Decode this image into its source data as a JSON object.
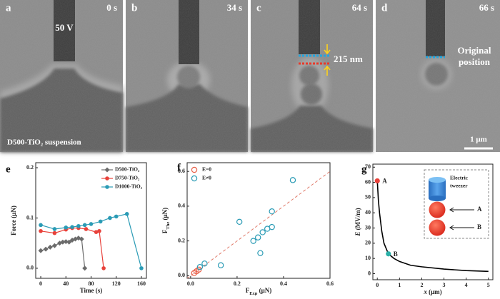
{
  "panels": [
    {
      "label": "a",
      "time": "0 s",
      "annotations": [
        "50 V",
        "D500-TiO₂ suspension"
      ]
    },
    {
      "label": "b",
      "time": "34 s"
    },
    {
      "label": "c",
      "time": "64 s",
      "annotations": [
        "215 nm"
      ]
    },
    {
      "label": "d",
      "time": "66 s",
      "annotations": [
        "Original",
        "position"
      ],
      "scale_bar": "1 μm"
    }
  ],
  "chart_data": [
    {
      "type": "line",
      "label": "e",
      "xlabel": [
        "Time (s)"
      ],
      "ylabel": [
        "Force (μN)"
      ],
      "xlim": [
        -8,
        168
      ],
      "xticks": [
        0,
        40,
        80,
        120,
        160
      ],
      "ylim": [
        -0.02,
        0.21
      ],
      "yticks": [
        {
          "value": 0,
          "label": "0.0"
        },
        0.1,
        0.2
      ],
      "legend": "upper right",
      "series": [
        {
          "name": "D500-TiO₂",
          "color": "#6b6b6b",
          "marker": "diamond",
          "x": [
            0,
            8,
            15,
            22,
            30,
            35,
            40,
            45,
            50,
            55,
            60,
            65,
            70
          ],
          "values": [
            0.035,
            0.038,
            0.042,
            0.045,
            0.05,
            0.052,
            0.053,
            0.052,
            0.056,
            0.058,
            0.06,
            0.058,
            0.0
          ]
        },
        {
          "name": "D750-TiO₂",
          "color": "#e8413a",
          "marker": "circle",
          "x": [
            0,
            22,
            40,
            50,
            60,
            72,
            88,
            93,
            100
          ],
          "values": [
            0.074,
            0.07,
            0.077,
            0.08,
            0.08,
            0.078,
            0.072,
            0.074,
            0.0
          ]
        },
        {
          "name": "D1000-TiO₂",
          "color": "#2a9bb5",
          "marker": "circle",
          "x": [
            0,
            22,
            40,
            50,
            60,
            70,
            80,
            95,
            110,
            120,
            137,
            160
          ],
          "values": [
            0.086,
            0.078,
            0.081,
            0.082,
            0.084,
            0.086,
            0.088,
            0.093,
            0.1,
            0.103,
            0.108,
            0.0
          ]
        }
      ]
    },
    {
      "type": "scatter",
      "label": "f",
      "xlabel": [
        "F",
        "Exp",
        " (μN)"
      ],
      "ylabel": [
        "F",
        "The",
        " (μN)"
      ],
      "label_style": "subscript",
      "xlim": [
        -0.015,
        0.6
      ],
      "xticks": [
        {
          "value": 0,
          "label": "0.0"
        },
        0.2,
        0.4,
        0.6
      ],
      "ylim": [
        -0.015,
        0.65
      ],
      "yticks": [
        {
          "value": 0,
          "label": "0.0"
        },
        0.2,
        0.4,
        0.6
      ],
      "legend": "upper left",
      "identity_line": true,
      "identity_color": "#e07a6a",
      "series": [
        {
          "name": "E=0",
          "color": "#e8614a",
          "marker": "open-circle",
          "x": [
            0.015,
            0.025,
            0.035
          ],
          "values": [
            0.015,
            0.025,
            0.035
          ]
        },
        {
          "name": "E≠0",
          "color": "#2a9bb5",
          "marker": "open-circle",
          "x": [
            0.04,
            0.06,
            0.13,
            0.21,
            0.27,
            0.29,
            0.3,
            0.31,
            0.33,
            0.35,
            0.35,
            0.44
          ],
          "values": [
            0.05,
            0.07,
            0.06,
            0.31,
            0.2,
            0.22,
            0.13,
            0.25,
            0.27,
            0.28,
            0.37,
            0.55
          ]
        }
      ]
    },
    {
      "type": "line",
      "label": "g",
      "xlabel": [
        "x",
        " (μm)"
      ],
      "ylabel": [
        "E",
        " (MV/m)"
      ],
      "label_style": "italic",
      "xlim": [
        -0.2,
        5.2
      ],
      "xticks": [
        0,
        1,
        2,
        3,
        4,
        5
      ],
      "ylim": [
        -4,
        72
      ],
      "yticks": [
        0,
        10,
        20,
        30,
        40,
        50,
        60,
        70
      ],
      "series": [
        {
          "color": "#000000",
          "marker": "none",
          "x": [
            0,
            0.05,
            0.1,
            0.2,
            0.3,
            0.5,
            0.75,
            1,
            1.5,
            2,
            3,
            4,
            5
          ],
          "values": [
            61,
            48,
            40,
            28,
            20,
            13,
            10,
            8,
            5.5,
            4.5,
            3,
            2,
            1.5
          ]
        }
      ],
      "points": [
        {
          "name": "A",
          "x": 0,
          "value": 61,
          "color": "#e8413a"
        },
        {
          "name": "B",
          "x": 0.5,
          "value": 13,
          "color": "#2ab0a8"
        }
      ],
      "inset": {
        "label": [
          "Electric",
          "tweezer"
        ],
        "arrows": [
          "A",
          "B"
        ]
      }
    }
  ]
}
